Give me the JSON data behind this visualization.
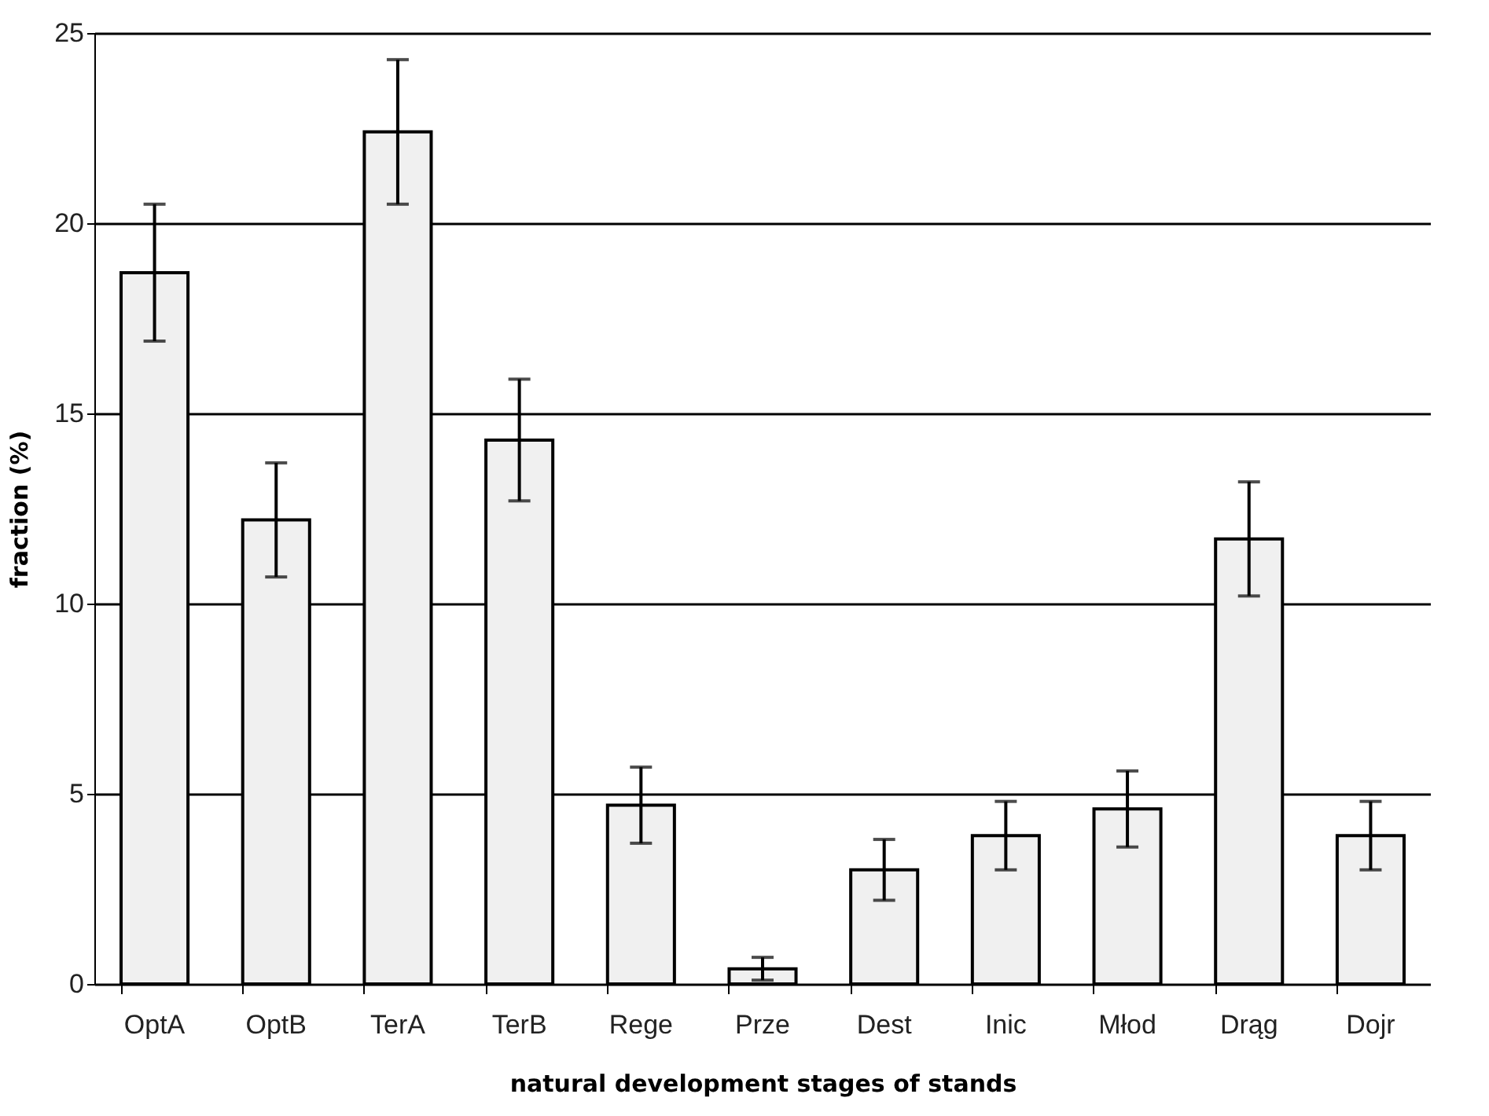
{
  "chart_data": {
    "type": "bar",
    "xlabel": "natural development stages of stands",
    "ylabel": "fraction (%)",
    "categories": [
      "OptA",
      "OptB",
      "TerA",
      "TerB",
      "Rege",
      "Prze",
      "Dest",
      "Inic",
      "Młod",
      "Drąg",
      "Dojr"
    ],
    "values": [
      18.7,
      12.2,
      22.4,
      14.3,
      4.7,
      0.4,
      3.0,
      3.9,
      4.6,
      11.7,
      3.9
    ],
    "errors": [
      1.8,
      1.5,
      1.9,
      1.6,
      1.0,
      0.3,
      0.8,
      0.9,
      1.0,
      1.5,
      0.9
    ],
    "color": "#f0f0f0",
    "ylim": [
      0,
      25
    ],
    "yticks": [
      0,
      5,
      10,
      15,
      20,
      25
    ],
    "grid": "y"
  }
}
